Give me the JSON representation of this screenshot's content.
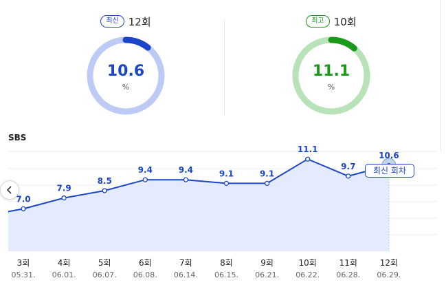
{
  "latest": {
    "badge": "최신",
    "count_label": "12회",
    "value": "10.6",
    "unit": "%",
    "fraction": 0.106,
    "color": "#1a45c8",
    "track": "#bccaf5"
  },
  "highest": {
    "badge": "최고",
    "count_label": "10회",
    "value": "11.1",
    "unit": "%",
    "fraction": 0.111,
    "color": "#1a9a1a",
    "track": "#b8e2b8"
  },
  "station": "SBS",
  "nav": {
    "prev_icon": "chevron-left-icon"
  },
  "tooltip": "최신 회차",
  "chart_data": {
    "type": "area",
    "categories": [
      "3회",
      "4회",
      "5회",
      "6회",
      "7회",
      "8회",
      "9회",
      "10회",
      "11회",
      "12회"
    ],
    "dates": [
      "05.31.",
      "06.01.",
      "06.07.",
      "06.08.",
      "06.14.",
      "06.15.",
      "06.21.",
      "06.22.",
      "06.28.",
      "06.29."
    ],
    "values": [
      7.0,
      7.9,
      8.5,
      9.4,
      9.4,
      9.1,
      9.1,
      11.1,
      9.7,
      10.6
    ],
    "labels": [
      "7.0",
      "7.9",
      "8.5",
      "9.4",
      "9.4",
      "9.1",
      "9.1",
      "11.1",
      "9.7",
      "10.6"
    ],
    "highlight_index": 9,
    "grid": true,
    "line_color": "#1a45c8",
    "fill_color": "#e3ebfc"
  }
}
